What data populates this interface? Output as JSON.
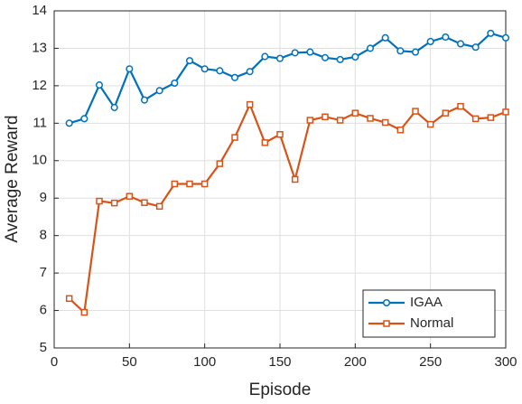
{
  "chart_data": {
    "type": "line",
    "xlabel": "Episode",
    "ylabel": "Average Reward",
    "x": [
      10,
      20,
      30,
      40,
      50,
      60,
      70,
      80,
      90,
      100,
      110,
      120,
      130,
      140,
      150,
      160,
      170,
      180,
      190,
      200,
      210,
      220,
      230,
      240,
      250,
      260,
      270,
      280,
      290,
      300
    ],
    "series": [
      {
        "name": "IGAA",
        "color": "#0072bd",
        "marker": "circle",
        "values": [
          11.0,
          11.12,
          12.02,
          11.42,
          12.45,
          11.62,
          11.87,
          12.07,
          12.67,
          12.45,
          12.4,
          12.22,
          12.38,
          12.78,
          12.73,
          12.88,
          12.9,
          12.75,
          12.7,
          12.77,
          13.0,
          13.28,
          12.93,
          12.9,
          13.18,
          13.3,
          13.12,
          13.03,
          13.4,
          13.28
        ]
      },
      {
        "name": "Normal",
        "color": "#d95319",
        "marker": "square",
        "values": [
          6.32,
          5.95,
          8.92,
          8.87,
          9.05,
          8.88,
          8.78,
          9.38,
          9.38,
          9.38,
          9.92,
          10.62,
          11.5,
          10.48,
          10.7,
          9.5,
          11.08,
          11.17,
          11.08,
          11.27,
          11.13,
          11.02,
          10.82,
          11.32,
          10.97,
          11.27,
          11.45,
          11.12,
          11.15,
          11.3
        ]
      }
    ],
    "xlim": [
      0,
      300
    ],
    "xticks": [
      0,
      50,
      100,
      150,
      200,
      250,
      300
    ],
    "ylim": [
      5,
      14
    ],
    "yticks": [
      5,
      6,
      7,
      8,
      9,
      10,
      11,
      12,
      13,
      14
    ],
    "grid": true,
    "legend": "lower right"
  }
}
